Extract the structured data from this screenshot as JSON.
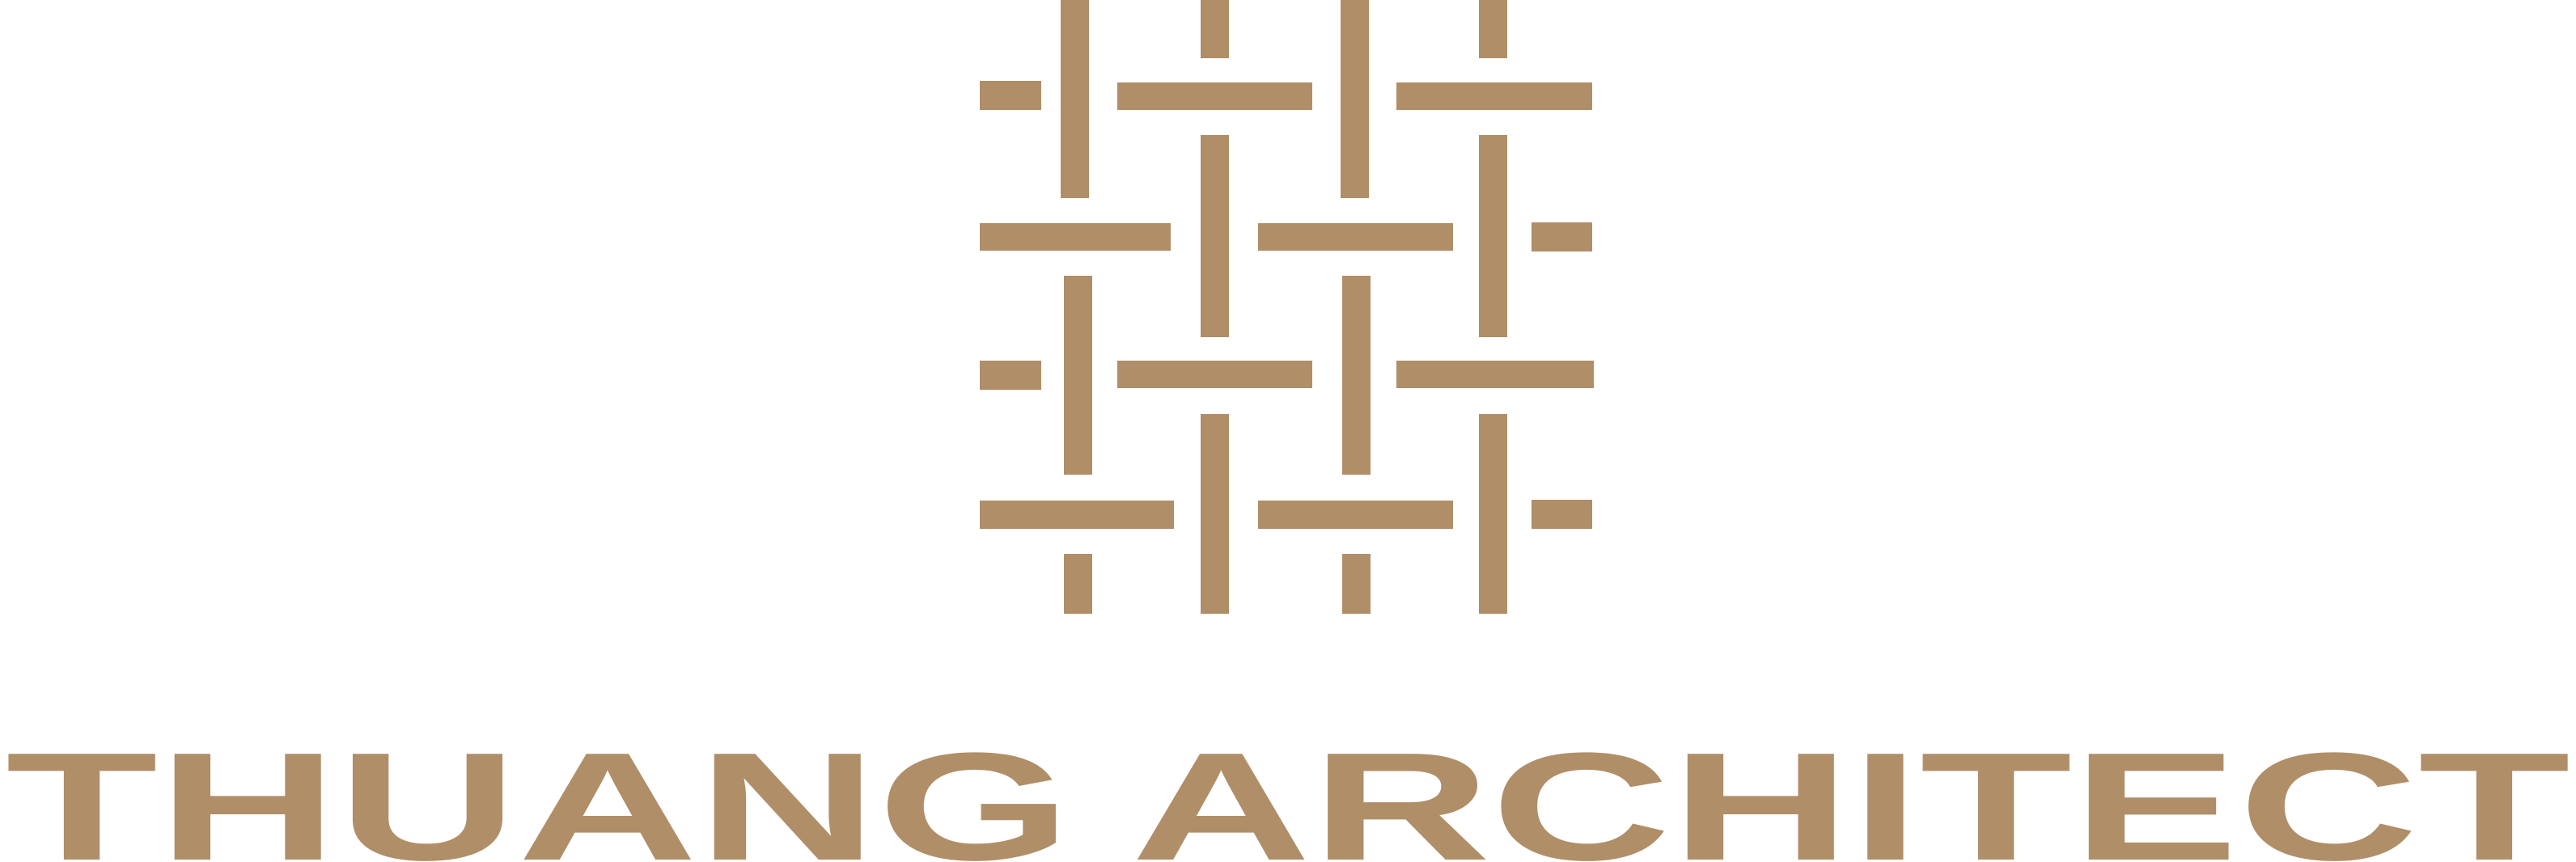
{
  "brand": {
    "name": "THUANG ARCHITECT",
    "color": "#b08e68",
    "background": "#ffffff"
  },
  "mark": {
    "pattern": "woven-lattice",
    "icon": "woven-grid-icon"
  }
}
